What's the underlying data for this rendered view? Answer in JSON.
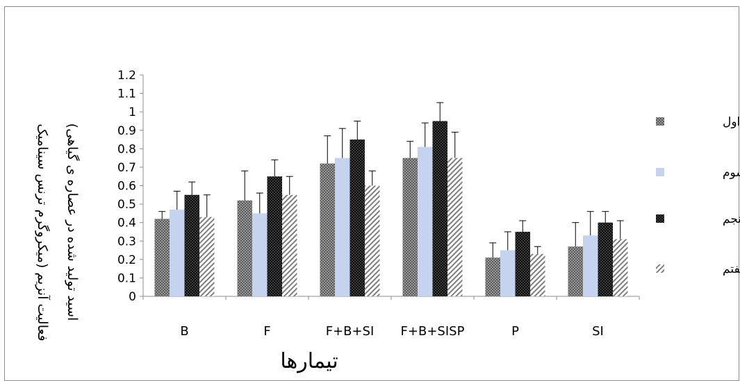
{
  "chart_data": {
    "type": "bar",
    "categories": [
      "B",
      "F",
      "F+B+SI",
      "F+B+SISP",
      "P",
      "SI"
    ],
    "series": [
      {
        "name": "روز اول",
        "values": [
          0.42,
          0.52,
          0.72,
          0.75,
          0.21,
          0.27
        ],
        "errors": [
          0.04,
          0.16,
          0.15,
          0.09,
          0.08,
          0.13
        ],
        "pattern": "dots-dense",
        "color": "#7a7a7a"
      },
      {
        "name": "روز سوم",
        "values": [
          0.47,
          0.45,
          0.75,
          0.81,
          0.25,
          0.33
        ],
        "errors": [
          0.1,
          0.11,
          0.16,
          0.13,
          0.1,
          0.13
        ],
        "pattern": "solid",
        "color": "#c5d3ee"
      },
      {
        "name": "روز پنجم",
        "values": [
          0.55,
          0.65,
          0.85,
          0.95,
          0.35,
          0.4
        ],
        "errors": [
          0.07,
          0.09,
          0.1,
          0.1,
          0.06,
          0.06
        ],
        "pattern": "checker-dark",
        "color": "#1a1a1a"
      },
      {
        "name": "روز هفتم",
        "values": [
          0.43,
          0.55,
          0.6,
          0.75,
          0.23,
          0.31
        ],
        "errors": [
          0.12,
          0.1,
          0.08,
          0.14,
          0.04,
          0.1
        ],
        "pattern": "diagonal",
        "color": "#8a8a8a"
      }
    ],
    "yticks": [
      "0",
      "0.1",
      "0.2",
      "0.3",
      "0.4",
      "0.5",
      "0.6",
      "0.7",
      "0.8",
      "0.9",
      "1",
      "1.1",
      "1.2"
    ],
    "ylim": [
      0,
      1.2
    ],
    "ylabel_line1": "فعالیت آنزیم (میکروگرم ترنس سینامیک",
    "ylabel_line2": "اسید تولید شده در عصاره ی گیاهی)",
    "xlabel": "تیمارها",
    "legend_position": "right",
    "grid": false
  }
}
